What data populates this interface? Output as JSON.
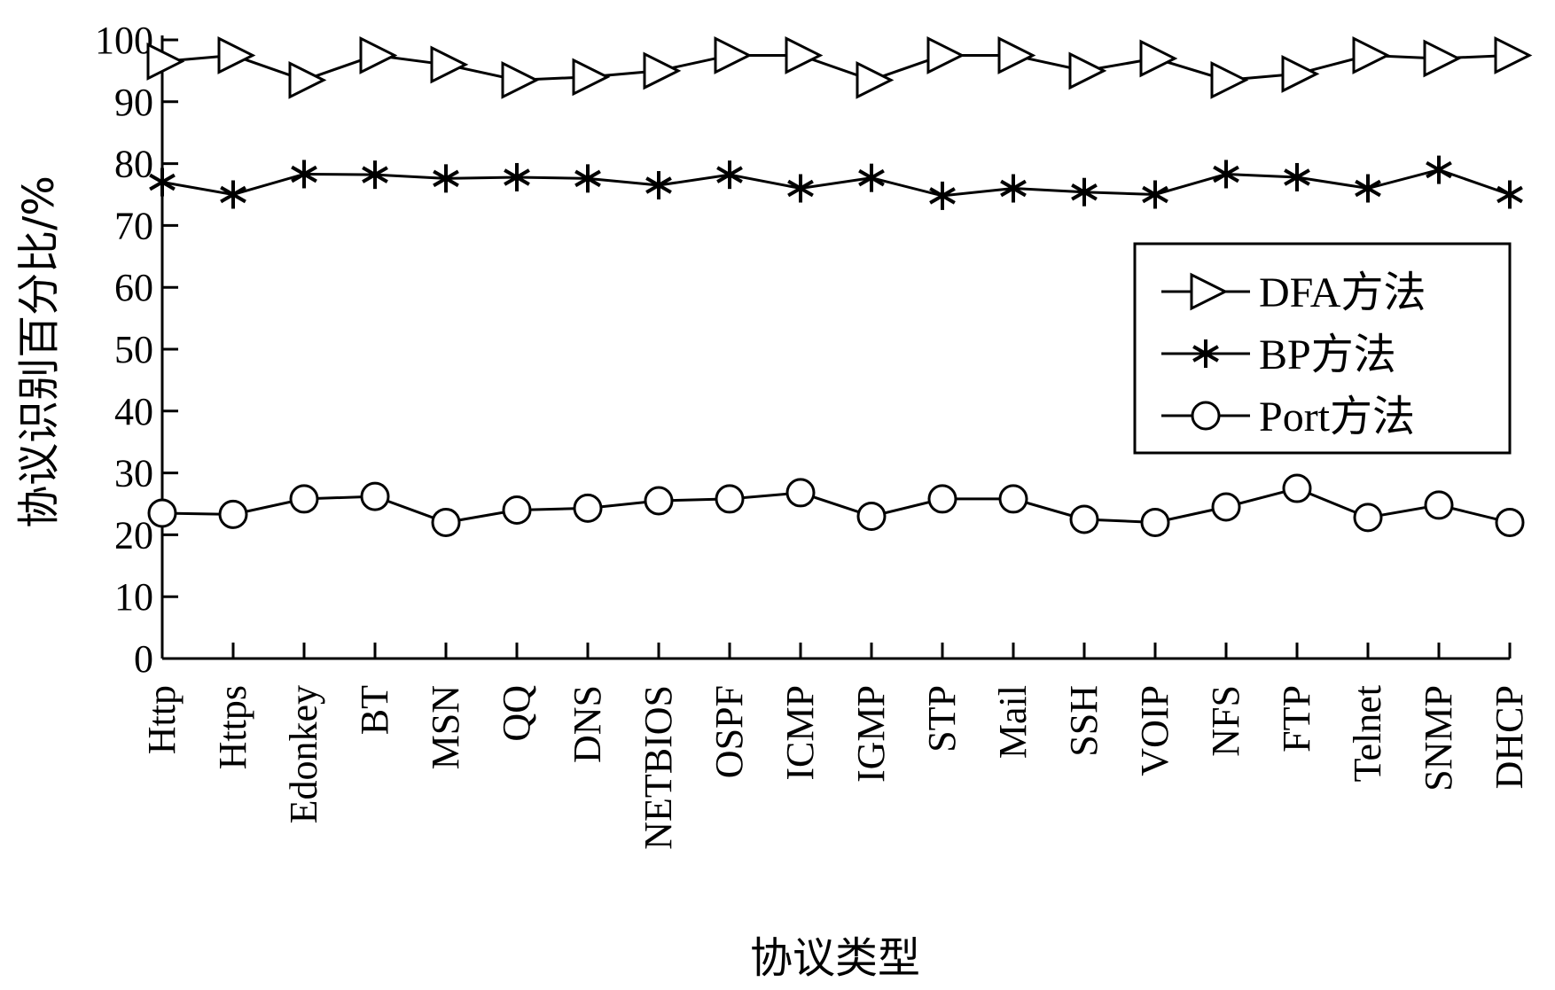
{
  "chart_data": {
    "type": "line",
    "title": "",
    "xlabel": "协议类型",
    "ylabel": "协议识别百分比/%",
    "ylim": [
      0,
      100
    ],
    "yticks": [
      0,
      10,
      20,
      30,
      40,
      50,
      60,
      70,
      80,
      90,
      100
    ],
    "grid": false,
    "legend_position": "right",
    "categories": [
      "Http",
      "Https",
      "Edonkey",
      "BT",
      "MSN",
      "QQ",
      "DNS",
      "NETBIOS",
      "OSPF",
      "ICMP",
      "IGMP",
      "STP",
      "Mail",
      "SSH",
      "VOIP",
      "NFS",
      "FTP",
      "Telnet",
      "SNMP",
      "DHCP"
    ],
    "series": [
      {
        "name": "DFA方法",
        "marker": "triangle-right",
        "values": [
          96.5,
          97.5,
          93.5,
          97.5,
          96,
          93.5,
          94,
          95,
          97.5,
          97.5,
          93.5,
          97.5,
          97.5,
          95,
          97,
          93.5,
          94.5,
          97.5,
          97,
          97.5
        ]
      },
      {
        "name": "BP方法",
        "marker": "asterisk",
        "values": [
          77,
          75,
          78.3,
          78.2,
          77.6,
          77.8,
          77.6,
          76.5,
          78.2,
          76,
          77.7,
          74.8,
          76,
          75.4,
          75,
          78.3,
          77.8,
          76,
          79,
          75
        ]
      },
      {
        "name": "Port方法",
        "marker": "circle",
        "values": [
          23.5,
          23.3,
          25.8,
          26.2,
          22,
          24,
          24.3,
          25.5,
          25.8,
          26.8,
          23,
          25.8,
          25.8,
          22.5,
          22,
          24.5,
          27.5,
          22.8,
          24.8,
          22
        ]
      }
    ]
  }
}
